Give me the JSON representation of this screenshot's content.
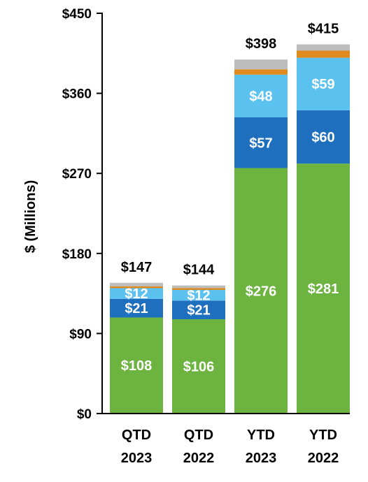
{
  "chart_data": {
    "type": "bar",
    "stacked": true,
    "ylabel": "$ (Millions)",
    "ylim": [
      0,
      450
    ],
    "y_ticks": [
      0,
      90,
      180,
      270,
      360,
      450
    ],
    "y_tick_labels": [
      "$0",
      "$90",
      "$180",
      "$270",
      "$360",
      "$450"
    ],
    "categories": [
      {
        "line1": "QTD",
        "line2": "2023"
      },
      {
        "line1": "QTD",
        "line2": "2022"
      },
      {
        "line1": "YTD",
        "line2": "2023"
      },
      {
        "line1": "YTD",
        "line2": "2022"
      }
    ],
    "totals": [
      147,
      144,
      398,
      415
    ],
    "total_labels": [
      "$147",
      "$144",
      "$398",
      "$415"
    ],
    "series": [
      {
        "color": "#6DB33F",
        "values": [
          108,
          106,
          276,
          281
        ],
        "labels": [
          "$108",
          "$106",
          "$276",
          "$281"
        ]
      },
      {
        "color": "#1F6FBF",
        "values": [
          21,
          21,
          57,
          60
        ],
        "labels": [
          "$21",
          "$21",
          "$57",
          "$60"
        ]
      },
      {
        "color": "#5BC2F0",
        "values": [
          12,
          12,
          48,
          59
        ],
        "labels": [
          "$12",
          "$12",
          "$48",
          "$59"
        ]
      },
      {
        "color": "#E08A1E",
        "values": [
          2,
          2,
          6,
          8
        ],
        "labels": [
          "",
          "",
          "",
          ""
        ]
      },
      {
        "color": "#BDBDBD",
        "values": [
          4,
          3,
          11,
          7
        ],
        "labels": [
          "",
          "",
          "",
          ""
        ]
      }
    ],
    "grid": false,
    "legend": "none"
  }
}
